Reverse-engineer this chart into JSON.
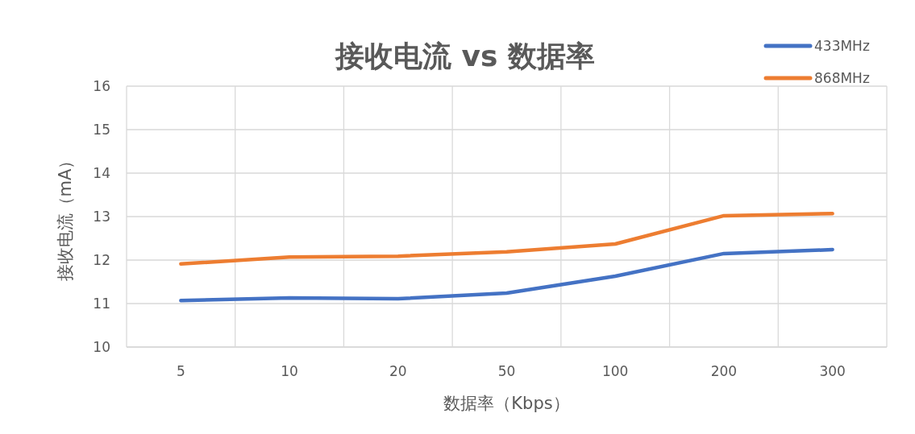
{
  "chart_data": {
    "type": "line",
    "title": "接收电流 vs 数据率",
    "xlabel": "数据率（Kbps）",
    "ylabel": "接收电流（mA）",
    "categories": [
      "5",
      "10",
      "20",
      "50",
      "100",
      "200",
      "300"
    ],
    "series": [
      {
        "name": "433MHz",
        "color": "#4472c4",
        "values": [
          11.07,
          11.13,
          11.11,
          11.24,
          11.63,
          12.15,
          12.24
        ]
      },
      {
        "name": "868MHz",
        "color": "#ed7d31",
        "values": [
          11.91,
          12.07,
          12.09,
          12.19,
          12.37,
          13.02,
          13.07
        ]
      }
    ],
    "ylim": [
      10,
      16
    ],
    "yticks": [
      10,
      11,
      12,
      13,
      14,
      15,
      16
    ],
    "grid": true,
    "legend": "top right",
    "marker": "none",
    "line_style": "solid"
  }
}
